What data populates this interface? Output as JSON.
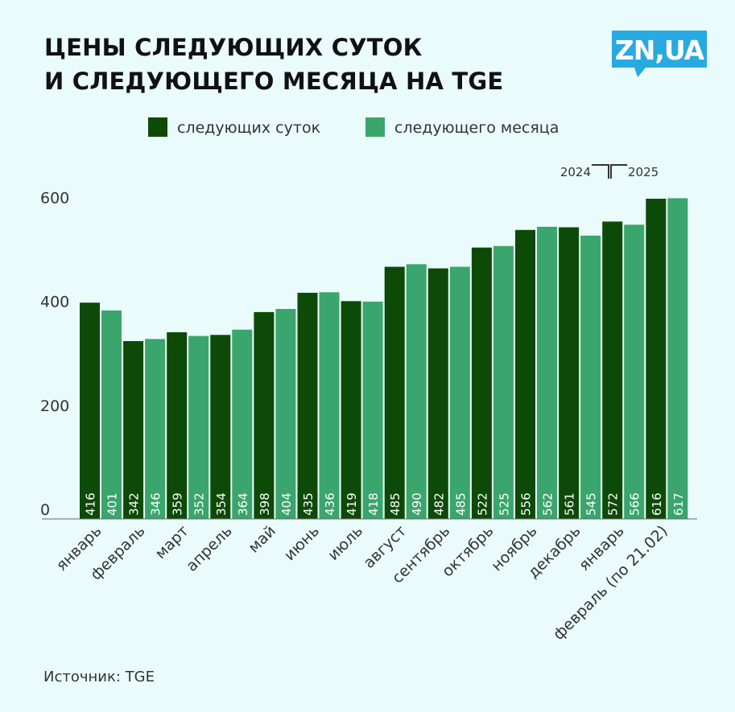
{
  "title_line1": "ЦЕНЫ СЛЕДУЮЩИХ СУТОК",
  "title_line2": "И СЛЕДУЮЩЕГО МЕСЯЦА НА TGE",
  "logo_text": "ZN,UA",
  "source": "Источник: TGE",
  "year_left": "2024",
  "year_right": "2025",
  "colors": {
    "day_ahead": "#0d4a07",
    "month_ahead": "#3aa56c",
    "background": "#e9fcfb",
    "logo": "#29a9e1"
  },
  "chart_data": {
    "type": "bar",
    "categories": [
      "январь",
      "февраль",
      "март",
      "апрель",
      "май",
      "июнь",
      "июль",
      "август",
      "сентябрь",
      "октябрь",
      "ноябрь",
      "декабрь",
      "январь",
      "февраль (по 21.02)"
    ],
    "series": [
      {
        "name": "следующих суток",
        "values": [
          416,
          342,
          359,
          354,
          398,
          435,
          419,
          485,
          482,
          522,
          556,
          561,
          572,
          616
        ]
      },
      {
        "name": "следующего месяца",
        "values": [
          401,
          346,
          352,
          364,
          404,
          436,
          418,
          490,
          485,
          525,
          562,
          545,
          566,
          617
        ]
      }
    ],
    "yticks": [
      0,
      200,
      400,
      600
    ],
    "ylim": [
      0,
      620
    ],
    "grid": false,
    "legend": "top-center",
    "data_labels": "inside-bottom-vertical"
  }
}
